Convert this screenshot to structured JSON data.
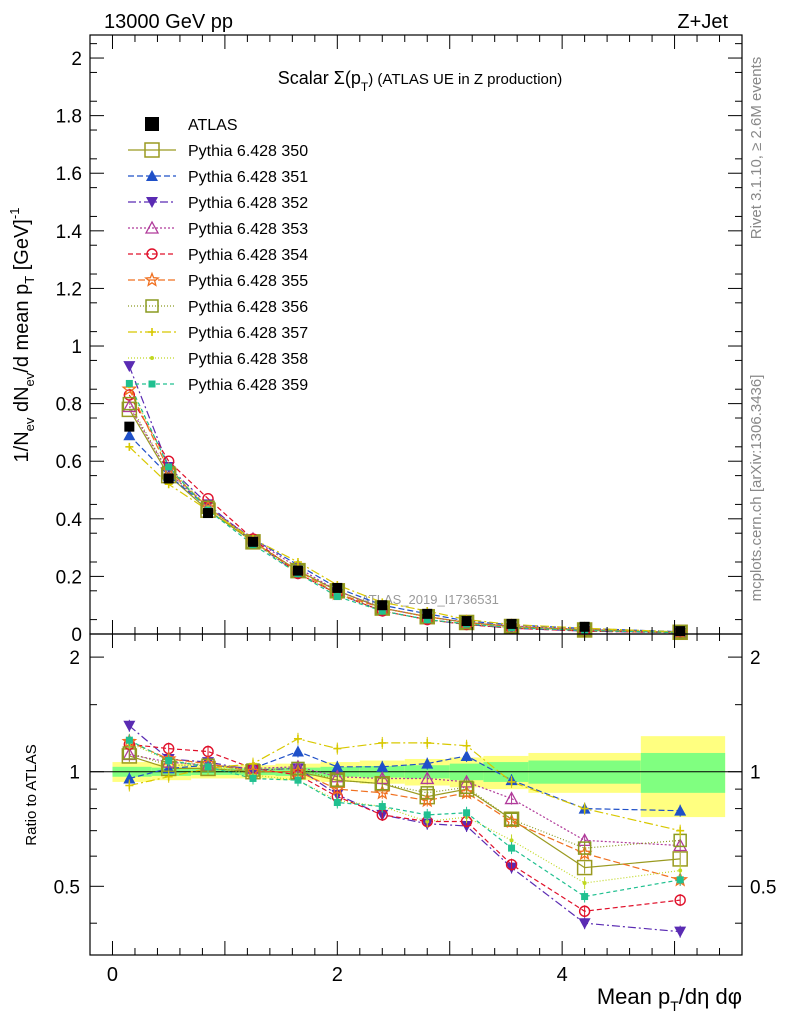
{
  "header": {
    "energy_label": "13000 GeV pp",
    "process_label": "Z+Jet"
  },
  "side_text": {
    "rivet": "Rivet 3.1.10, ≥ 2.6M events",
    "mcplots": "mcplots.cern.ch [arXiv:1306.3436]"
  },
  "colors": {
    "ref_band_outer": "#ffff80",
    "ref_band_inner": "#80ff80",
    "s350": "#9a9a20",
    "s351": "#1f50c8",
    "s352": "#5a2bb3",
    "s353": "#b03a9a",
    "s354": "#e0102a",
    "s355": "#f07020",
    "s356": "#8a9a20",
    "s357": "#d8c800",
    "s358": "#c0d820",
    "s359": "#20c090"
  },
  "chart_data": [
    {
      "type": "scatter",
      "title": "Scalar Σ(pT) (ATLAS UE in Z production)",
      "title_main": "Scalar Σ(p",
      "title_sub": "T",
      "title_tail": ") (ATLAS UE in Z production)",
      "watermark": "ATLAS_2019_I1736531",
      "ylabel": "1/Nev dNev/d mean pT [GeV]⁻¹",
      "xlim": [
        -0.2,
        5.6
      ],
      "ylim": [
        0,
        2.08
      ],
      "grid": false,
      "legend_position": "top-left",
      "yticks": [
        0,
        0.2,
        0.4,
        0.6,
        0.8,
        1,
        1.2,
        1.4,
        1.6,
        1.8,
        2
      ],
      "ytick_labels": [
        "0",
        "0.2",
        "0.4",
        "0.6",
        "0.8",
        "1",
        "1.2",
        "1.4",
        "1.6",
        "1.8",
        "2"
      ],
      "x": [
        0.15,
        0.5,
        0.85,
        1.25,
        1.65,
        2.0,
        2.4,
        2.8,
        3.15,
        3.55,
        4.2,
        5.05
      ],
      "atlas": {
        "name": "ATLAS",
        "values": [
          0.72,
          0.54,
          0.42,
          0.32,
          0.22,
          0.16,
          0.1,
          0.07,
          0.045,
          0.035,
          0.025,
          0.01
        ]
      },
      "series": [
        {
          "name": "Pythia 6.428 350",
          "marker": "open-square-large",
          "dash": "",
          "colorKey": "s350",
          "values": [
            0.78,
            0.55,
            0.43,
            0.32,
            0.22,
            0.15,
            0.09,
            0.06,
            0.04,
            0.026,
            0.014,
            0.006
          ]
        },
        {
          "name": "Pythia 6.428 351",
          "marker": "triangle-up",
          "dash": "6,3",
          "colorKey": "s351",
          "values": [
            0.69,
            0.55,
            0.44,
            0.33,
            0.24,
            0.16,
            0.1,
            0.07,
            0.045,
            0.032,
            0.019,
            0.008
          ]
        },
        {
          "name": "Pythia 6.428 352",
          "marker": "triangle-down",
          "dash": "8,3,2,3",
          "colorKey": "s352",
          "values": [
            0.93,
            0.58,
            0.45,
            0.32,
            0.21,
            0.14,
            0.08,
            0.05,
            0.033,
            0.02,
            0.01,
            0.004
          ]
        },
        {
          "name": "Pythia 6.428 353",
          "marker": "open-triangle",
          "dash": "2,2",
          "colorKey": "s353",
          "values": [
            0.79,
            0.56,
            0.44,
            0.33,
            0.23,
            0.15,
            0.09,
            0.06,
            0.04,
            0.028,
            0.016,
            0.006
          ]
        },
        {
          "name": "Pythia 6.428 354",
          "marker": "open-circle",
          "dash": "5,3",
          "colorKey": "s354",
          "values": [
            0.83,
            0.6,
            0.47,
            0.33,
            0.21,
            0.14,
            0.08,
            0.05,
            0.033,
            0.02,
            0.01,
            0.005
          ]
        },
        {
          "name": "Pythia 6.428 355",
          "marker": "open-star",
          "dash": "7,3",
          "colorKey": "s355",
          "values": [
            0.85,
            0.57,
            0.44,
            0.32,
            0.22,
            0.14,
            0.09,
            0.06,
            0.04,
            0.026,
            0.015,
            0.005
          ]
        },
        {
          "name": "Pythia 6.428 356",
          "marker": "open-square",
          "dash": "1,2",
          "colorKey": "s356",
          "values": [
            0.8,
            0.56,
            0.44,
            0.32,
            0.22,
            0.15,
            0.09,
            0.06,
            0.04,
            0.026,
            0.015,
            0.007
          ]
        },
        {
          "name": "Pythia 6.428 357",
          "marker": "cross",
          "dash": "9,3,2,3",
          "colorKey": "s357",
          "values": [
            0.65,
            0.52,
            0.43,
            0.33,
            0.25,
            0.17,
            0.11,
            0.08,
            0.05,
            0.033,
            0.02,
            0.007
          ]
        },
        {
          "name": "Pythia 6.428 358",
          "marker": "dot",
          "dash": "1,2",
          "colorKey": "s358",
          "values": [
            0.86,
            0.58,
            0.44,
            0.32,
            0.21,
            0.14,
            0.08,
            0.05,
            0.035,
            0.022,
            0.012,
            0.005
          ]
        },
        {
          "name": "Pythia 6.428 359",
          "marker": "square-small",
          "dash": "4,3",
          "colorKey": "s359",
          "values": [
            0.87,
            0.58,
            0.43,
            0.31,
            0.21,
            0.13,
            0.08,
            0.05,
            0.035,
            0.022,
            0.012,
            0.005
          ]
        }
      ]
    },
    {
      "type": "scatter",
      "ylabel": "Ratio to ATLAS",
      "xlabel": "Mean pT/dη dφ",
      "xlabel_main": "Mean p",
      "xlabel_sub": "T",
      "xlabel_tail": "/dη dφ",
      "xlim": [
        -0.2,
        5.6
      ],
      "ylim": [
        0.33,
        2.3
      ],
      "grid": false,
      "xticks": [
        0,
        2,
        4
      ],
      "xtick_labels": [
        "0",
        "2",
        "4"
      ],
      "yticks": [
        0.5,
        1,
        2
      ],
      "ytick_labels": [
        "0.5",
        "1",
        "2"
      ],
      "x": [
        0.15,
        0.5,
        0.85,
        1.25,
        1.65,
        2.0,
        2.4,
        2.8,
        3.15,
        3.55,
        4.2,
        5.05
      ],
      "band_edges": [
        0,
        0.35,
        0.7,
        1.05,
        1.45,
        1.85,
        2.2,
        2.6,
        3.0,
        3.3,
        3.7,
        4.7,
        5.45
      ],
      "band_outer": [
        0.06,
        0.05,
        0.04,
        0.04,
        0.05,
        0.06,
        0.07,
        0.08,
        0.09,
        0.1,
        0.12,
        0.24
      ],
      "band_inner": [
        0.03,
        0.025,
        0.02,
        0.02,
        0.025,
        0.03,
        0.035,
        0.04,
        0.05,
        0.06,
        0.07,
        0.12
      ],
      "series": [
        {
          "name": "Pythia 6.428 350",
          "values": [
            1.1,
            1.02,
            1.02,
            1.0,
            1.0,
            0.95,
            0.93,
            0.86,
            0.9,
            0.75,
            0.56,
            0.59
          ]
        },
        {
          "name": "Pythia 6.428 351",
          "values": [
            0.96,
            1.02,
            1.04,
            1.02,
            1.13,
            1.03,
            1.03,
            1.05,
            1.1,
            0.95,
            0.8,
            0.79
          ]
        },
        {
          "name": "Pythia 6.428 352",
          "values": [
            1.32,
            1.08,
            1.06,
            1.01,
            1.02,
            0.87,
            0.77,
            0.73,
            0.72,
            0.56,
            0.4,
            0.38
          ]
        },
        {
          "name": "Pythia 6.428 353",
          "values": [
            1.11,
            1.06,
            1.04,
            1.02,
            1.03,
            0.97,
            0.96,
            0.96,
            0.94,
            0.85,
            0.66,
            0.64
          ]
        },
        {
          "name": "Pythia 6.428 354",
          "values": [
            1.18,
            1.15,
            1.13,
            1.02,
            0.98,
            0.86,
            0.77,
            0.74,
            0.74,
            0.57,
            0.43,
            0.46
          ]
        },
        {
          "name": "Pythia 6.428 355",
          "values": [
            1.2,
            1.08,
            1.05,
            1.0,
            1.0,
            0.9,
            0.88,
            0.84,
            0.88,
            0.74,
            0.61,
            0.52
          ]
        },
        {
          "name": "Pythia 6.428 356",
          "values": [
            1.12,
            1.04,
            1.04,
            1.01,
            1.02,
            0.95,
            0.93,
            0.88,
            0.91,
            0.75,
            0.63,
            0.66
          ]
        },
        {
          "name": "Pythia 6.428 357",
          "values": [
            0.92,
            0.97,
            1.02,
            1.05,
            1.22,
            1.15,
            1.19,
            1.19,
            1.17,
            0.94,
            0.8,
            0.7
          ]
        },
        {
          "name": "Pythia 6.428 358",
          "values": [
            1.19,
            1.07,
            1.04,
            0.98,
            0.95,
            0.84,
            0.81,
            0.74,
            0.76,
            0.66,
            0.51,
            0.55
          ]
        },
        {
          "name": "Pythia 6.428 359",
          "values": [
            1.21,
            1.07,
            1.03,
            0.96,
            0.95,
            0.83,
            0.81,
            0.77,
            0.78,
            0.63,
            0.47,
            0.52
          ]
        }
      ]
    }
  ]
}
